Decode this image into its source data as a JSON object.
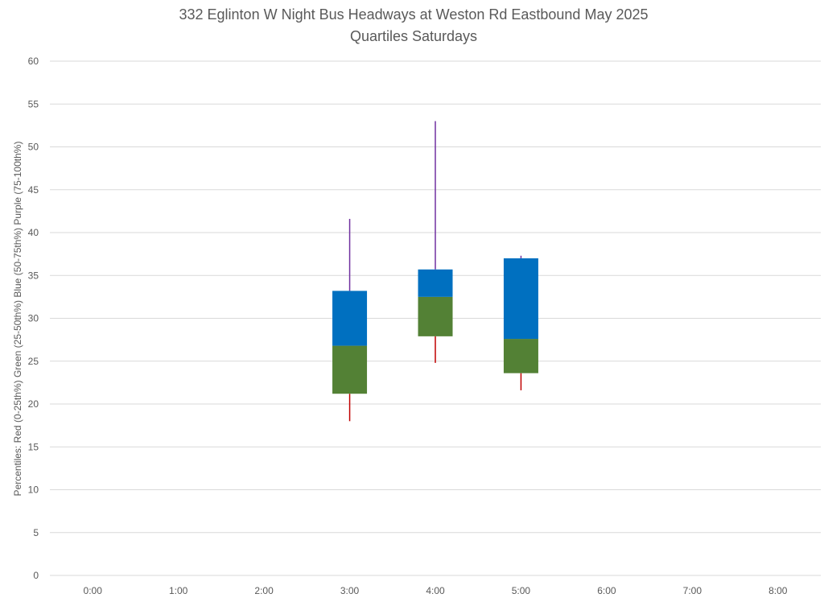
{
  "chart_data": {
    "type": "stacked-bar-boxplot",
    "title": "332 Eglinton W Night Bus Headways at Weston Rd Eastbound May 2025",
    "subtitle": "Quartiles Saturdays",
    "ylabel": "Percentiles:  Red (0-25th%)  Green (25-50th%)  Blue (50-75th%)  Purple (75-100th%)",
    "xlabel": "",
    "categories": [
      "0:00",
      "1:00",
      "2:00",
      "3:00",
      "4:00",
      "5:00",
      "6:00",
      "7:00",
      "8:00"
    ],
    "ylim": [
      0,
      60
    ],
    "yticks": [
      0,
      5,
      10,
      15,
      20,
      25,
      30,
      35,
      40,
      45,
      50,
      55,
      60
    ],
    "grid": true,
    "legend": "none",
    "boxes": [
      {
        "category": "3:00",
        "min": 18.0,
        "q1": 21.2,
        "median": 26.8,
        "q3": 33.2,
        "max": 41.6
      },
      {
        "category": "4:00",
        "min": 24.8,
        "q1": 27.9,
        "median": 32.5,
        "q3": 35.7,
        "max": 53.0
      },
      {
        "category": "5:00",
        "min": 21.6,
        "q1": 23.6,
        "median": 27.6,
        "q3": 37.0,
        "max": 37.3
      }
    ],
    "colors": {
      "lower_whisker": "#c00000",
      "lower_box": "#538135",
      "upper_box": "#0070c0",
      "upper_whisker": "#7030a0",
      "grid": "#d9d9d9",
      "text": "#595959"
    }
  }
}
